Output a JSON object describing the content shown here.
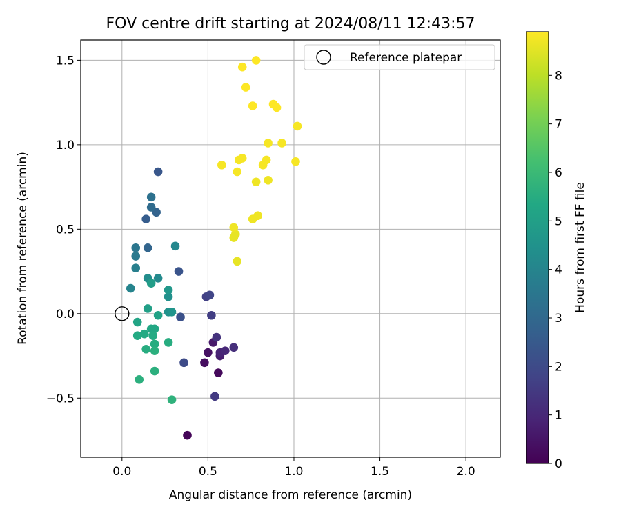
{
  "chart_data": {
    "type": "scatter",
    "title": "FOV centre drift starting at 2024/08/11 12:43:57",
    "xlabel": "Angular distance from reference (arcmin)",
    "ylabel": "Rotation from reference (arcmin)",
    "xlim": [
      -0.24,
      2.2
    ],
    "ylim": [
      -0.85,
      1.62
    ],
    "xticks": [
      0.0,
      0.5,
      1.0,
      1.5,
      2.0
    ],
    "xtick_labels": [
      "0.0",
      "0.5",
      "1.0",
      "1.5",
      "2.0"
    ],
    "yticks": [
      -0.5,
      0.0,
      0.5,
      1.0,
      1.5
    ],
    "ytick_labels": [
      "−0.5",
      "0.0",
      "0.5",
      "1.0",
      "1.5"
    ],
    "grid": true,
    "legend": {
      "position": "top-right",
      "entries": [
        "Reference platepar"
      ]
    },
    "reference": {
      "x": 0.0,
      "y": 0.0
    },
    "colorbar": {
      "label": "Hours from first FF file",
      "colormap": "viridis",
      "range": [
        0,
        8.9
      ],
      "ticks": [
        0,
        1,
        2,
        3,
        4,
        5,
        6,
        7,
        8
      ],
      "tick_labels": [
        "0",
        "1",
        "2",
        "3",
        "4",
        "5",
        "6",
        "7",
        "8"
      ]
    },
    "points": [
      {
        "x": 0.38,
        "y": -0.72,
        "hours": 0.1
      },
      {
        "x": 0.56,
        "y": -0.35,
        "hours": 0.2
      },
      {
        "x": 0.48,
        "y": -0.29,
        "hours": 0.3
      },
      {
        "x": 0.5,
        "y": -0.23,
        "hours": 0.4
      },
      {
        "x": 0.53,
        "y": -0.17,
        "hours": 0.6
      },
      {
        "x": 0.57,
        "y": -0.25,
        "hours": 0.7
      },
      {
        "x": 0.57,
        "y": -0.23,
        "hours": 0.9
      },
      {
        "x": 0.6,
        "y": -0.22,
        "hours": 1.0
      },
      {
        "x": 0.65,
        "y": -0.2,
        "hours": 1.2
      },
      {
        "x": 0.55,
        "y": -0.14,
        "hours": 1.3
      },
      {
        "x": 0.54,
        "y": -0.49,
        "hours": 1.5
      },
      {
        "x": 0.52,
        "y": -0.01,
        "hours": 1.6
      },
      {
        "x": 0.49,
        "y": 0.1,
        "hours": 1.7
      },
      {
        "x": 0.51,
        "y": 0.11,
        "hours": 1.8
      },
      {
        "x": 0.36,
        "y": -0.29,
        "hours": 2.0
      },
      {
        "x": 0.34,
        "y": -0.02,
        "hours": 2.2
      },
      {
        "x": 0.33,
        "y": 0.25,
        "hours": 2.3
      },
      {
        "x": 0.21,
        "y": 0.84,
        "hours": 2.4
      },
      {
        "x": 0.14,
        "y": 0.56,
        "hours": 2.6
      },
      {
        "x": 0.2,
        "y": 0.6,
        "hours": 2.8
      },
      {
        "x": 0.15,
        "y": 0.39,
        "hours": 2.9
      },
      {
        "x": 0.17,
        "y": 0.63,
        "hours": 3.1
      },
      {
        "x": 0.17,
        "y": 0.69,
        "hours": 3.3
      },
      {
        "x": 0.08,
        "y": 0.39,
        "hours": 3.5
      },
      {
        "x": 0.08,
        "y": 0.34,
        "hours": 3.6
      },
      {
        "x": 0.08,
        "y": 0.27,
        "hours": 3.8
      },
      {
        "x": 0.05,
        "y": 0.15,
        "hours": 4.0
      },
      {
        "x": 0.31,
        "y": 0.4,
        "hours": 4.1
      },
      {
        "x": 0.21,
        "y": 0.21,
        "hours": 4.2
      },
      {
        "x": 0.15,
        "y": 0.21,
        "hours": 4.3
      },
      {
        "x": 0.27,
        "y": 0.1,
        "hours": 4.4
      },
      {
        "x": 0.27,
        "y": 0.01,
        "hours": 4.5
      },
      {
        "x": 0.29,
        "y": 0.01,
        "hours": 4.6
      },
      {
        "x": 0.27,
        "y": 0.14,
        "hours": 4.7
      },
      {
        "x": 0.17,
        "y": 0.18,
        "hours": 4.9
      },
      {
        "x": 0.15,
        "y": 0.03,
        "hours": 5.0
      },
      {
        "x": 0.21,
        "y": -0.01,
        "hours": 5.1
      },
      {
        "x": 0.09,
        "y": -0.05,
        "hours": 5.2
      },
      {
        "x": 0.17,
        "y": -0.09,
        "hours": 5.3
      },
      {
        "x": 0.19,
        "y": -0.09,
        "hours": 5.3
      },
      {
        "x": 0.18,
        "y": -0.13,
        "hours": 5.4
      },
      {
        "x": 0.13,
        "y": -0.12,
        "hours": 5.4
      },
      {
        "x": 0.09,
        "y": -0.13,
        "hours": 5.4
      },
      {
        "x": 0.19,
        "y": -0.18,
        "hours": 5.5
      },
      {
        "x": 0.27,
        "y": -0.17,
        "hours": 5.5
      },
      {
        "x": 0.14,
        "y": -0.21,
        "hours": 5.5
      },
      {
        "x": 0.19,
        "y": -0.22,
        "hours": 5.6
      },
      {
        "x": 0.19,
        "y": -0.34,
        "hours": 5.6
      },
      {
        "x": 0.1,
        "y": -0.39,
        "hours": 5.6
      },
      {
        "x": 0.29,
        "y": -0.51,
        "hours": 5.7
      },
      {
        "x": 0.67,
        "y": 0.31,
        "hours": 8.6
      },
      {
        "x": 0.65,
        "y": 0.45,
        "hours": 8.6
      },
      {
        "x": 0.66,
        "y": 0.47,
        "hours": 8.6
      },
      {
        "x": 0.65,
        "y": 0.51,
        "hours": 8.7
      },
      {
        "x": 0.76,
        "y": 0.56,
        "hours": 8.7
      },
      {
        "x": 0.79,
        "y": 0.58,
        "hours": 8.7
      },
      {
        "x": 0.78,
        "y": 0.78,
        "hours": 8.7
      },
      {
        "x": 0.85,
        "y": 0.79,
        "hours": 8.7
      },
      {
        "x": 0.58,
        "y": 0.88,
        "hours": 8.8
      },
      {
        "x": 0.67,
        "y": 0.84,
        "hours": 8.8
      },
      {
        "x": 0.68,
        "y": 0.91,
        "hours": 8.8
      },
      {
        "x": 0.7,
        "y": 0.92,
        "hours": 8.8
      },
      {
        "x": 0.82,
        "y": 0.88,
        "hours": 8.8
      },
      {
        "x": 0.84,
        "y": 0.91,
        "hours": 8.8
      },
      {
        "x": 1.01,
        "y": 0.9,
        "hours": 8.8
      },
      {
        "x": 0.85,
        "y": 1.01,
        "hours": 8.8
      },
      {
        "x": 0.93,
        "y": 1.01,
        "hours": 8.8
      },
      {
        "x": 1.02,
        "y": 1.11,
        "hours": 8.8
      },
      {
        "x": 0.76,
        "y": 1.23,
        "hours": 8.9
      },
      {
        "x": 0.88,
        "y": 1.24,
        "hours": 8.9
      },
      {
        "x": 0.9,
        "y": 1.22,
        "hours": 8.9
      },
      {
        "x": 0.72,
        "y": 1.34,
        "hours": 8.9
      },
      {
        "x": 0.7,
        "y": 1.46,
        "hours": 8.9
      },
      {
        "x": 0.78,
        "y": 1.5,
        "hours": 8.9
      }
    ]
  }
}
